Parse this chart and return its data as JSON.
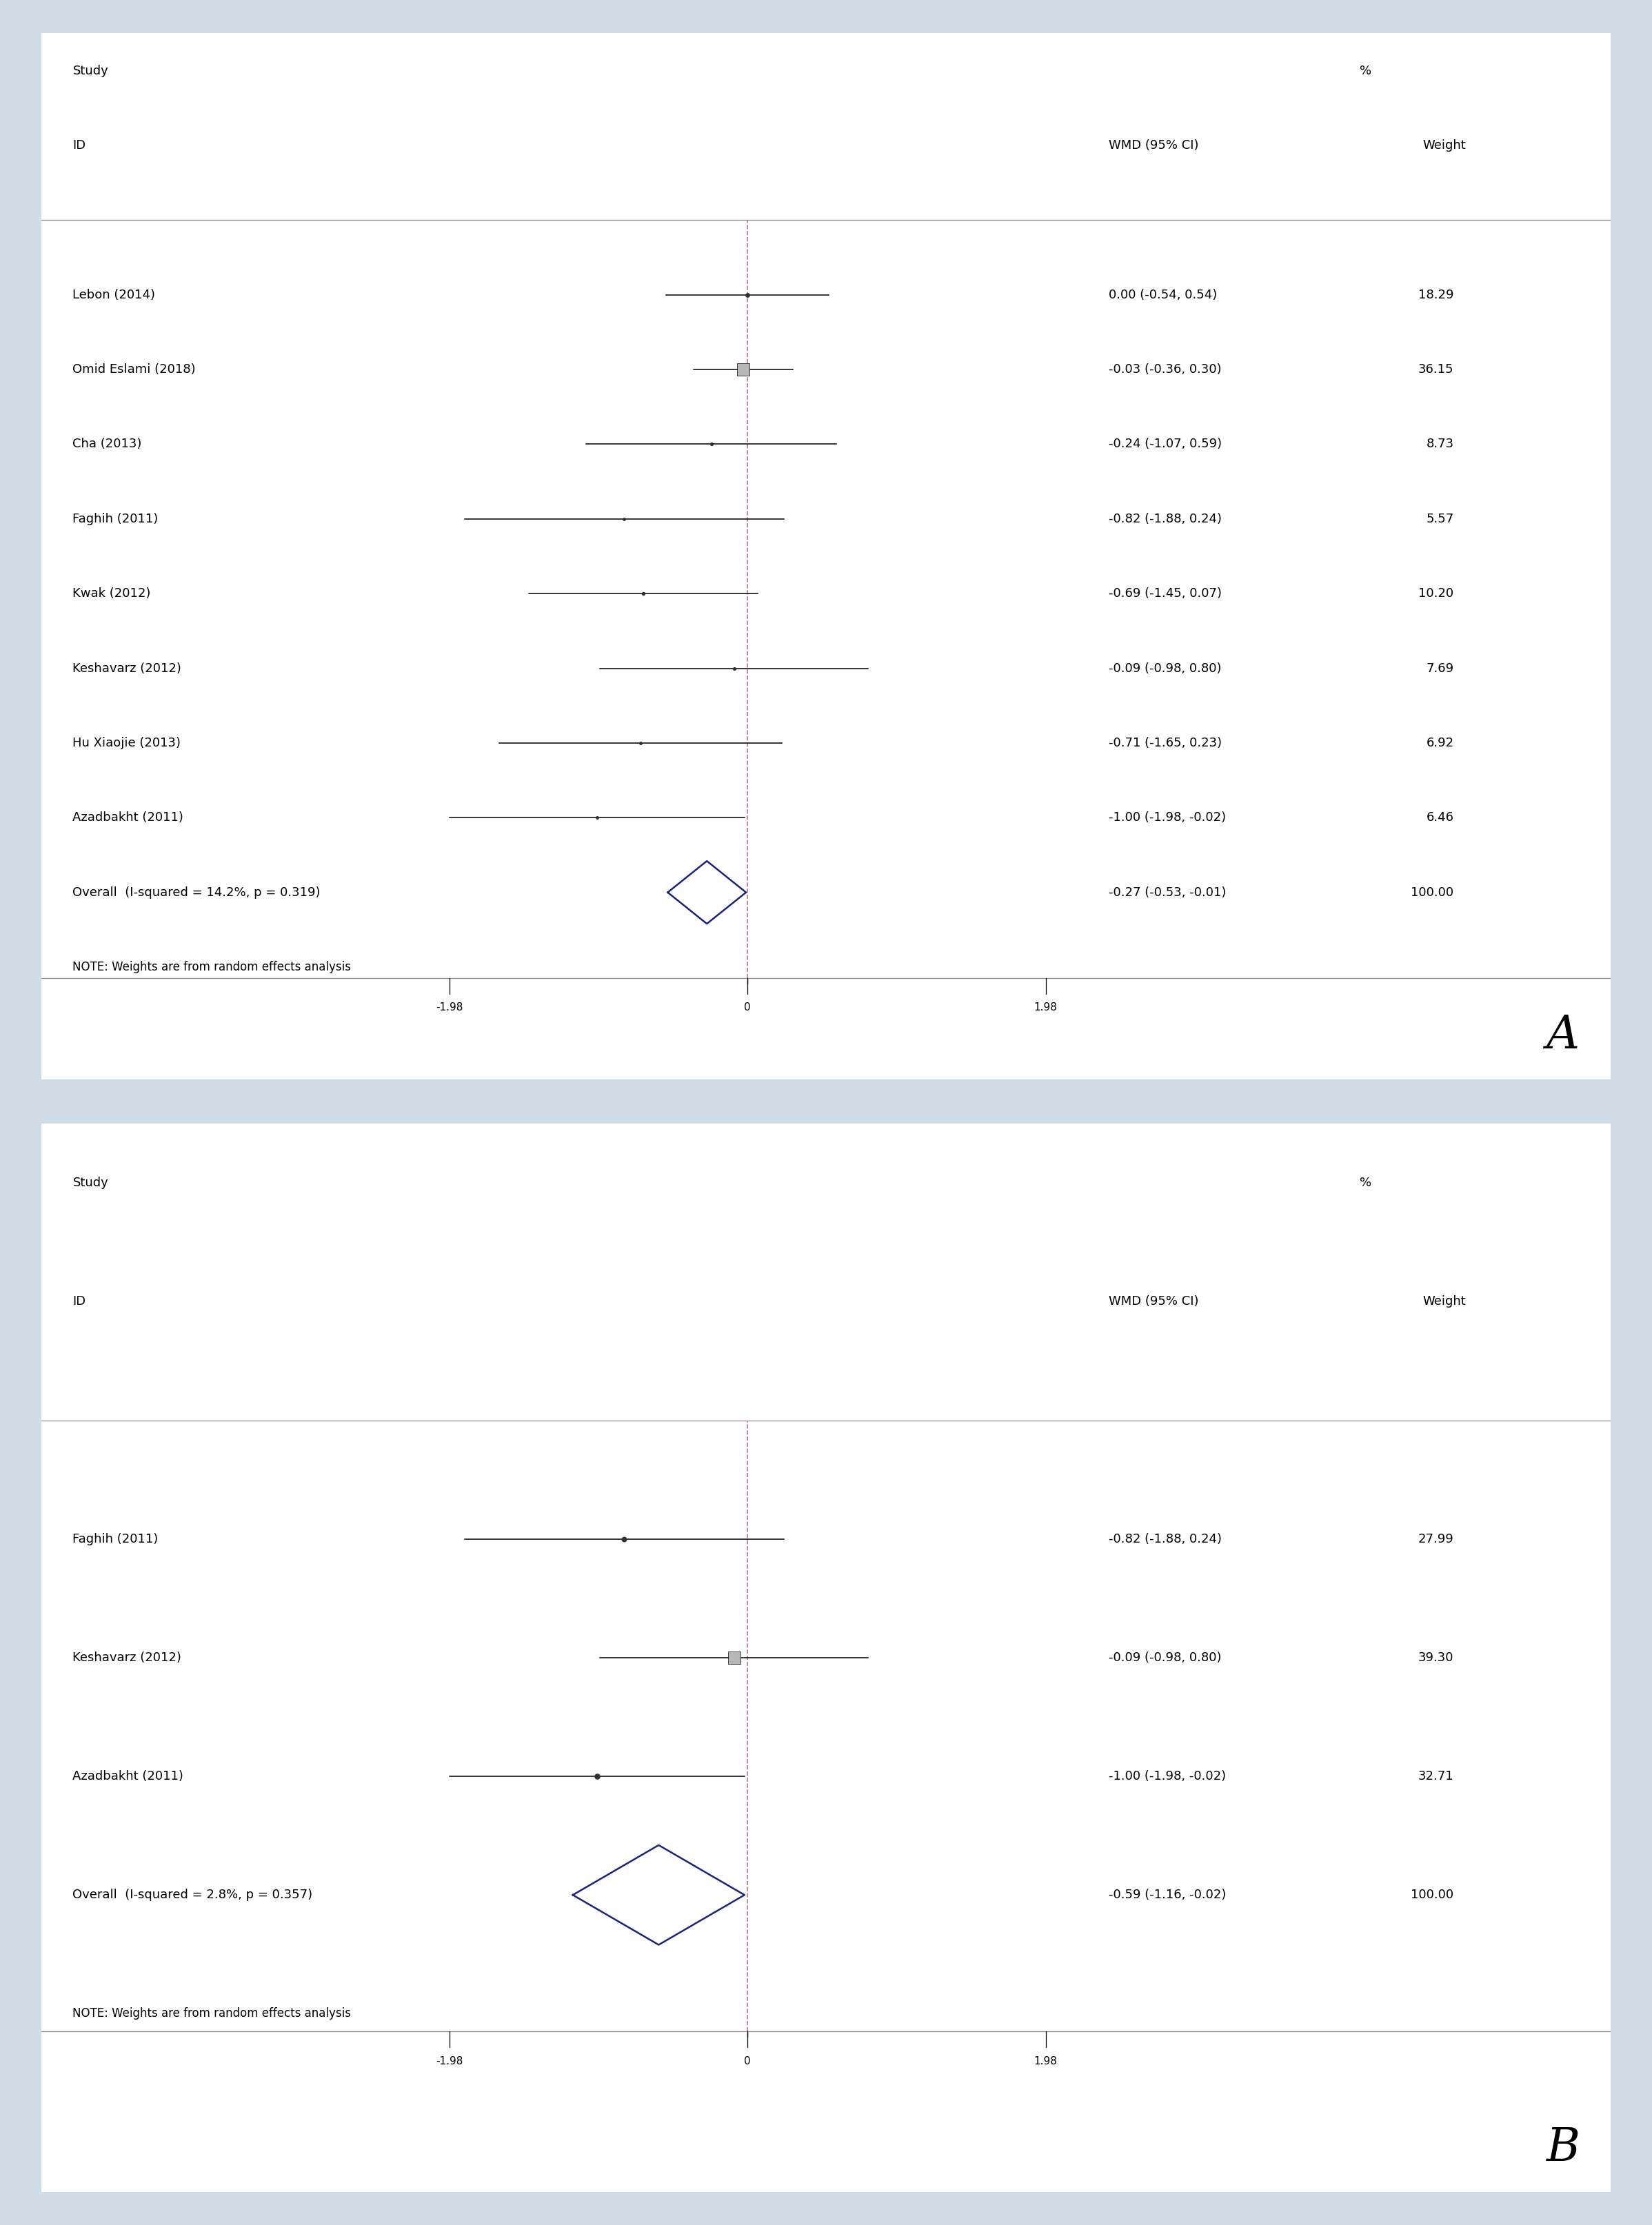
{
  "bg_color": "#d0dde6",
  "panel_color": "#ffffff",
  "panel_border_color": "#aaaaaa",
  "dashed_line_color": "#c07080",
  "diamond_color": "#1a237e",
  "font_size": 13,
  "axis_font_size": 11,
  "panel_A": {
    "label": "A",
    "studies": [
      {
        "name": "Lebon (2014)",
        "wmd": 0.0,
        "ci_lo": -0.54,
        "ci_hi": 0.54,
        "weight": 18.29,
        "weight_str": "18.29",
        "ci_str": "0.00 (-0.54, 0.54)"
      },
      {
        "name": "Omid Eslami (2018)",
        "wmd": -0.03,
        "ci_lo": -0.36,
        "ci_hi": 0.3,
        "weight": 36.15,
        "weight_str": "36.15",
        "ci_str": "-0.03 (-0.36, 0.30)"
      },
      {
        "name": "Cha (2013)",
        "wmd": -0.24,
        "ci_lo": -1.07,
        "ci_hi": 0.59,
        "weight": 8.73,
        "weight_str": "8.73",
        "ci_str": "-0.24 (-1.07, 0.59)"
      },
      {
        "name": "Faghih (2011)",
        "wmd": -0.82,
        "ci_lo": -1.88,
        "ci_hi": 0.24,
        "weight": 5.57,
        "weight_str": "5.57",
        "ci_str": "-0.82 (-1.88, 0.24)"
      },
      {
        "name": "Kwak (2012)",
        "wmd": -0.69,
        "ci_lo": -1.45,
        "ci_hi": 0.07,
        "weight": 10.2,
        "weight_str": "10.20",
        "ci_str": "-0.69 (-1.45, 0.07)"
      },
      {
        "name": "Keshavarz (2012)",
        "wmd": -0.09,
        "ci_lo": -0.98,
        "ci_hi": 0.8,
        "weight": 7.69,
        "weight_str": "7.69",
        "ci_str": "-0.09 (-0.98, 0.80)"
      },
      {
        "name": "Hu Xiaojie (2013)",
        "wmd": -0.71,
        "ci_lo": -1.65,
        "ci_hi": 0.23,
        "weight": 6.92,
        "weight_str": "6.92",
        "ci_str": "-0.71 (-1.65, 0.23)"
      },
      {
        "name": "Azadbakht (2011)",
        "wmd": -1.0,
        "ci_lo": -1.98,
        "ci_hi": -0.02,
        "weight": 6.46,
        "weight_str": "6.46",
        "ci_str": "-1.00 (-1.98, -0.02)"
      }
    ],
    "overall": {
      "wmd": -0.27,
      "ci_lo": -0.53,
      "ci_hi": -0.01,
      "ci_str": "-0.27 (-0.53, -0.01)",
      "weight_str": "100.00",
      "label": "Overall  (I-squared = 14.2%, p = 0.319)"
    },
    "note": "NOTE: Weights are from random effects analysis",
    "xlim": [
      -1.98,
      1.98
    ],
    "xticks": [
      -1.98,
      0,
      1.98
    ]
  },
  "panel_B": {
    "label": "B",
    "studies": [
      {
        "name": "Faghih (2011)",
        "wmd": -0.82,
        "ci_lo": -1.88,
        "ci_hi": 0.24,
        "weight": 27.99,
        "weight_str": "27.99",
        "ci_str": "-0.82 (-1.88, 0.24)"
      },
      {
        "name": "Keshavarz (2012)",
        "wmd": -0.09,
        "ci_lo": -0.98,
        "ci_hi": 0.8,
        "weight": 39.3,
        "weight_str": "39.30",
        "ci_str": "-0.09 (-0.98, 0.80)"
      },
      {
        "name": "Azadbakht (2011)",
        "wmd": -1.0,
        "ci_lo": -1.98,
        "ci_hi": -0.02,
        "weight": 32.71,
        "weight_str": "32.71",
        "ci_str": "-1.00 (-1.98, -0.02)"
      }
    ],
    "overall": {
      "wmd": -0.59,
      "ci_lo": -1.16,
      "ci_hi": -0.02,
      "ci_str": "-0.59 (-1.16, -0.02)",
      "weight_str": "100.00",
      "label": "Overall  (I-squared = 2.8%, p = 0.357)"
    },
    "note": "NOTE: Weights are from random effects analysis",
    "xlim": [
      -1.98,
      1.98
    ],
    "xticks": [
      -1.98,
      0,
      1.98
    ]
  }
}
